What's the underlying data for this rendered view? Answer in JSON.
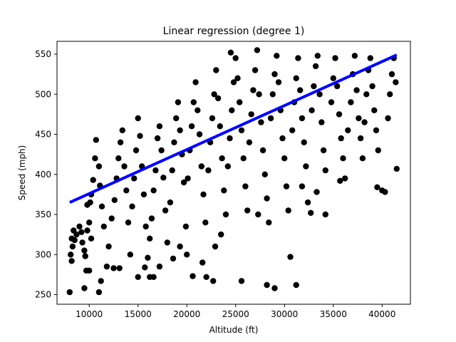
{
  "chart_data": {
    "type": "scatter",
    "title": "Linear regression (degree 1)",
    "xlabel": "Altitude (ft)",
    "ylabel": "Speed (mph)",
    "xlim": [
      6700,
      42900
    ],
    "ylim": [
      238,
      566
    ],
    "xticks": [
      10000,
      15000,
      20000,
      25000,
      30000,
      35000,
      40000
    ],
    "yticks": [
      250,
      300,
      350,
      400,
      450,
      500,
      550
    ],
    "grid": false,
    "legend": "none",
    "point_color": "#000000",
    "line_color": "#0000ff",
    "regression_line": {
      "x": [
        8000,
        41500
      ],
      "y": [
        365,
        549
      ]
    },
    "points": [
      [
        8000,
        253
      ],
      [
        8200,
        292
      ],
      [
        8100,
        300
      ],
      [
        8300,
        310
      ],
      [
        8200,
        320
      ],
      [
        8400,
        330
      ],
      [
        8500,
        318
      ],
      [
        8700,
        325
      ],
      [
        9000,
        335
      ],
      [
        9200,
        328
      ],
      [
        9300,
        315
      ],
      [
        9500,
        305
      ],
      [
        9600,
        298
      ],
      [
        9800,
        330
      ],
      [
        10000,
        340
      ],
      [
        10200,
        320
      ],
      [
        9700,
        280
      ],
      [
        10000,
        280
      ],
      [
        9500,
        258
      ],
      [
        9800,
        362
      ],
      [
        10100,
        365
      ],
      [
        10200,
        375
      ],
      [
        10400,
        393
      ],
      [
        10600,
        420
      ],
      [
        10700,
        443
      ],
      [
        11000,
        410
      ],
      [
        11100,
        386
      ],
      [
        11300,
        360
      ],
      [
        11500,
        335
      ],
      [
        11200,
        267
      ],
      [
        11000,
        253
      ],
      [
        11800,
        285
      ],
      [
        12000,
        310
      ],
      [
        12300,
        345
      ],
      [
        12600,
        368
      ],
      [
        12800,
        395
      ],
      [
        13000,
        420
      ],
      [
        13200,
        440
      ],
      [
        13400,
        455
      ],
      [
        13600,
        410
      ],
      [
        13800,
        380
      ],
      [
        14000,
        340
      ],
      [
        14200,
        300
      ],
      [
        12500,
        283
      ],
      [
        13100,
        283
      ],
      [
        14400,
        360
      ],
      [
        14600,
        395
      ],
      [
        14800,
        430
      ],
      [
        15000,
        470
      ],
      [
        15200,
        448
      ],
      [
        15400,
        410
      ],
      [
        15600,
        375
      ],
      [
        15800,
        335
      ],
      [
        15000,
        272
      ],
      [
        15700,
        284
      ],
      [
        16000,
        296
      ],
      [
        16200,
        320
      ],
      [
        16400,
        345
      ],
      [
        16600,
        380
      ],
      [
        16800,
        405
      ],
      [
        17000,
        445
      ],
      [
        17200,
        460
      ],
      [
        17400,
        430
      ],
      [
        17600,
        396
      ],
      [
        17800,
        355
      ],
      [
        18000,
        315
      ],
      [
        16200,
        272
      ],
      [
        16600,
        272
      ],
      [
        17200,
        285
      ],
      [
        18300,
        365
      ],
      [
        18500,
        405
      ],
      [
        18700,
        440
      ],
      [
        18900,
        470
      ],
      [
        19100,
        490
      ],
      [
        19300,
        455
      ],
      [
        19500,
        425
      ],
      [
        19700,
        390
      ],
      [
        19900,
        335
      ],
      [
        20000,
        300
      ],
      [
        18600,
        295
      ],
      [
        19300,
        310
      ],
      [
        20100,
        395
      ],
      [
        20300,
        430
      ],
      [
        20500,
        460
      ],
      [
        20700,
        490
      ],
      [
        20900,
        515
      ],
      [
        21100,
        480
      ],
      [
        21300,
        450
      ],
      [
        21500,
        410
      ],
      [
        21700,
        375
      ],
      [
        21900,
        340
      ],
      [
        21600,
        290
      ],
      [
        22000,
        272
      ],
      [
        20600,
        273
      ],
      [
        22200,
        405
      ],
      [
        22400,
        440
      ],
      [
        22600,
        470
      ],
      [
        22800,
        500
      ],
      [
        23000,
        530
      ],
      [
        23200,
        495
      ],
      [
        23400,
        460
      ],
      [
        23600,
        420
      ],
      [
        23800,
        380
      ],
      [
        24000,
        350
      ],
      [
        22900,
        310
      ],
      [
        23500,
        325
      ],
      [
        22700,
        267
      ],
      [
        24200,
        410
      ],
      [
        24400,
        445
      ],
      [
        24600,
        480
      ],
      [
        24800,
        515
      ],
      [
        25000,
        545
      ],
      [
        24500,
        552
      ],
      [
        25200,
        520
      ],
      [
        25400,
        490
      ],
      [
        25600,
        455
      ],
      [
        25800,
        420
      ],
      [
        26000,
        385
      ],
      [
        26200,
        355
      ],
      [
        25600,
        267
      ],
      [
        26400,
        440
      ],
      [
        26600,
        475
      ],
      [
        26800,
        505
      ],
      [
        27000,
        530
      ],
      [
        27200,
        555
      ],
      [
        27400,
        500
      ],
      [
        27600,
        465
      ],
      [
        27800,
        430
      ],
      [
        28000,
        400
      ],
      [
        28200,
        370
      ],
      [
        28400,
        340
      ],
      [
        27300,
        350
      ],
      [
        28200,
        262
      ],
      [
        29000,
        258
      ],
      [
        28600,
        470
      ],
      [
        28800,
        500
      ],
      [
        29000,
        525
      ],
      [
        29200,
        548
      ],
      [
        29400,
        515
      ],
      [
        29600,
        480
      ],
      [
        29800,
        445
      ],
      [
        30000,
        420
      ],
      [
        30200,
        385
      ],
      [
        30400,
        355
      ],
      [
        30600,
        297
      ],
      [
        31200,
        262
      ],
      [
        30800,
        455
      ],
      [
        31000,
        490
      ],
      [
        31200,
        520
      ],
      [
        31400,
        545
      ],
      [
        31600,
        505
      ],
      [
        31800,
        470
      ],
      [
        32000,
        440
      ],
      [
        32200,
        410
      ],
      [
        31800,
        385
      ],
      [
        32400,
        365
      ],
      [
        32700,
        352
      ],
      [
        32800,
        480
      ],
      [
        33000,
        510
      ],
      [
        33200,
        535
      ],
      [
        33400,
        548
      ],
      [
        33600,
        500
      ],
      [
        33800,
        465
      ],
      [
        34000,
        430
      ],
      [
        34200,
        405
      ],
      [
        33300,
        378
      ],
      [
        34200,
        350
      ],
      [
        34800,
        490
      ],
      [
        35000,
        520
      ],
      [
        35200,
        545
      ],
      [
        35400,
        510
      ],
      [
        35600,
        475
      ],
      [
        35800,
        445
      ],
      [
        36000,
        420
      ],
      [
        36200,
        395
      ],
      [
        35700,
        392
      ],
      [
        36500,
        455
      ],
      [
        36800,
        490
      ],
      [
        37000,
        525
      ],
      [
        37200,
        548
      ],
      [
        37400,
        505
      ],
      [
        37600,
        470
      ],
      [
        37800,
        445
      ],
      [
        38000,
        420
      ],
      [
        38200,
        465
      ],
      [
        38400,
        500
      ],
      [
        38600,
        530
      ],
      [
        38800,
        545
      ],
      [
        39000,
        510
      ],
      [
        39200,
        480
      ],
      [
        39400,
        455
      ],
      [
        39600,
        430
      ],
      [
        39500,
        384
      ],
      [
        40000,
        380
      ],
      [
        40300,
        378
      ],
      [
        40600,
        470
      ],
      [
        40800,
        500
      ],
      [
        41000,
        525
      ],
      [
        41200,
        545
      ],
      [
        41400,
        515
      ],
      [
        41500,
        407
      ]
    ]
  }
}
